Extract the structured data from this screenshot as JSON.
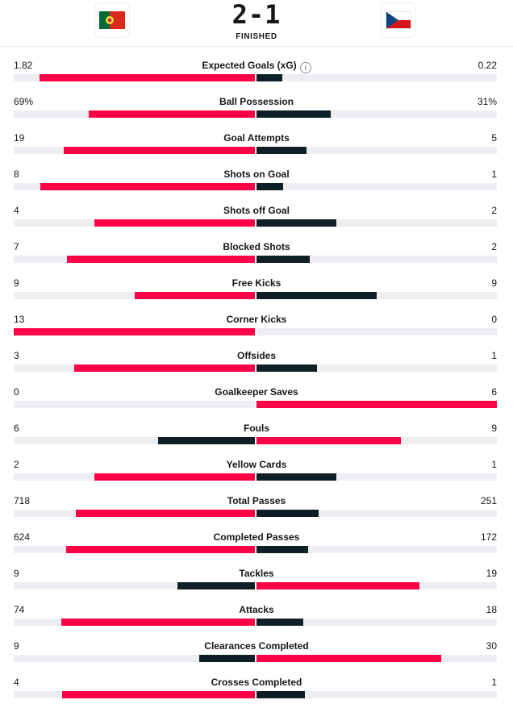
{
  "match": {
    "home_team_flag": "portugal-flag",
    "away_team_flag": "czech-republic-flag",
    "home_score": "2",
    "separator": "-",
    "away_score": "1",
    "status": "FINISHED"
  },
  "colors": {
    "leader": "#ff0046",
    "trailer": "#0f1f26",
    "track": "#eceef1"
  },
  "stats": [
    {
      "label": "Expected Goals (xG)",
      "home": "1.82",
      "away": "0.22",
      "home_value": 1.82,
      "away_value": 0.22,
      "info": true
    },
    {
      "label": "Ball Possession",
      "home": "69%",
      "away": "31%",
      "home_value": 69,
      "away_value": 31
    },
    {
      "label": "Goal Attempts",
      "home": "19",
      "away": "5",
      "home_value": 19,
      "away_value": 5
    },
    {
      "label": "Shots on Goal",
      "home": "8",
      "away": "1",
      "home_value": 8,
      "away_value": 1
    },
    {
      "label": "Shots off Goal",
      "home": "4",
      "away": "2",
      "home_value": 4,
      "away_value": 2
    },
    {
      "label": "Blocked Shots",
      "home": "7",
      "away": "2",
      "home_value": 7,
      "away_value": 2
    },
    {
      "label": "Free Kicks",
      "home": "9",
      "away": "9",
      "home_value": 9,
      "away_value": 9
    },
    {
      "label": "Corner Kicks",
      "home": "13",
      "away": "0",
      "home_value": 13,
      "away_value": 0
    },
    {
      "label": "Offsides",
      "home": "3",
      "away": "1",
      "home_value": 3,
      "away_value": 1
    },
    {
      "label": "Goalkeeper Saves",
      "home": "0",
      "away": "6",
      "home_value": 0,
      "away_value": 6
    },
    {
      "label": "Fouls",
      "home": "6",
      "away": "9",
      "home_value": 6,
      "away_value": 9
    },
    {
      "label": "Yellow Cards",
      "home": "2",
      "away": "1",
      "home_value": 2,
      "away_value": 1
    },
    {
      "label": "Total Passes",
      "home": "718",
      "away": "251",
      "home_value": 718,
      "away_value": 251
    },
    {
      "label": "Completed Passes",
      "home": "624",
      "away": "172",
      "home_value": 624,
      "away_value": 172
    },
    {
      "label": "Tackles",
      "home": "9",
      "away": "19",
      "home_value": 9,
      "away_value": 19
    },
    {
      "label": "Attacks",
      "home": "74",
      "away": "18",
      "home_value": 74,
      "away_value": 18
    },
    {
      "label": "Clearances Completed",
      "home": "9",
      "away": "30",
      "home_value": 9,
      "away_value": 30
    },
    {
      "label": "Crosses Completed",
      "home": "4",
      "away": "1",
      "home_value": 4,
      "away_value": 1
    }
  ]
}
